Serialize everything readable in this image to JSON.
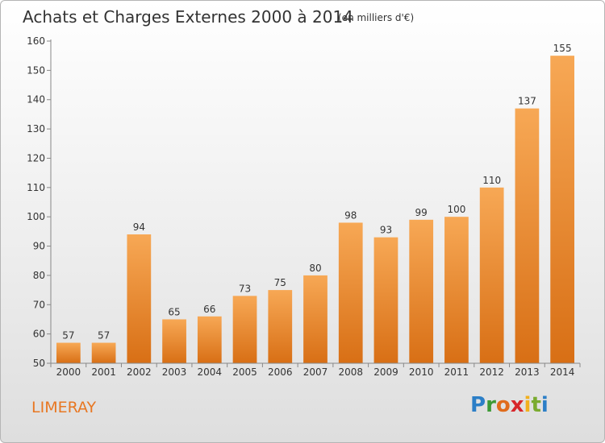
{
  "header": {
    "title": "Achats et Charges Externes 2000 à 2014",
    "subtitle": "(en milliers d'€)"
  },
  "footer": {
    "location": "LIMERAY",
    "brand": "Proxiti"
  },
  "colors": {
    "bar_top": "#f7a855",
    "bar_bottom": "#d86f15",
    "axis": "#888888",
    "location_text": "#e87722"
  },
  "chart_data": {
    "type": "bar",
    "title": "Achats et Charges Externes 2000 à 2014",
    "subtitle": "(en milliers d'€)",
    "xlabel": "",
    "ylabel": "",
    "categories": [
      "2000",
      "2001",
      "2002",
      "2003",
      "2004",
      "2005",
      "2006",
      "2007",
      "2008",
      "2009",
      "2010",
      "2011",
      "2012",
      "2013",
      "2014"
    ],
    "values": [
      57,
      57,
      94,
      65,
      66,
      73,
      75,
      80,
      98,
      93,
      99,
      100,
      110,
      137,
      155
    ],
    "ylim": [
      50,
      160
    ],
    "yticks": [
      50,
      60,
      70,
      80,
      90,
      100,
      110,
      120,
      130,
      140,
      150,
      160
    ],
    "grid": false,
    "data_labels": true
  }
}
